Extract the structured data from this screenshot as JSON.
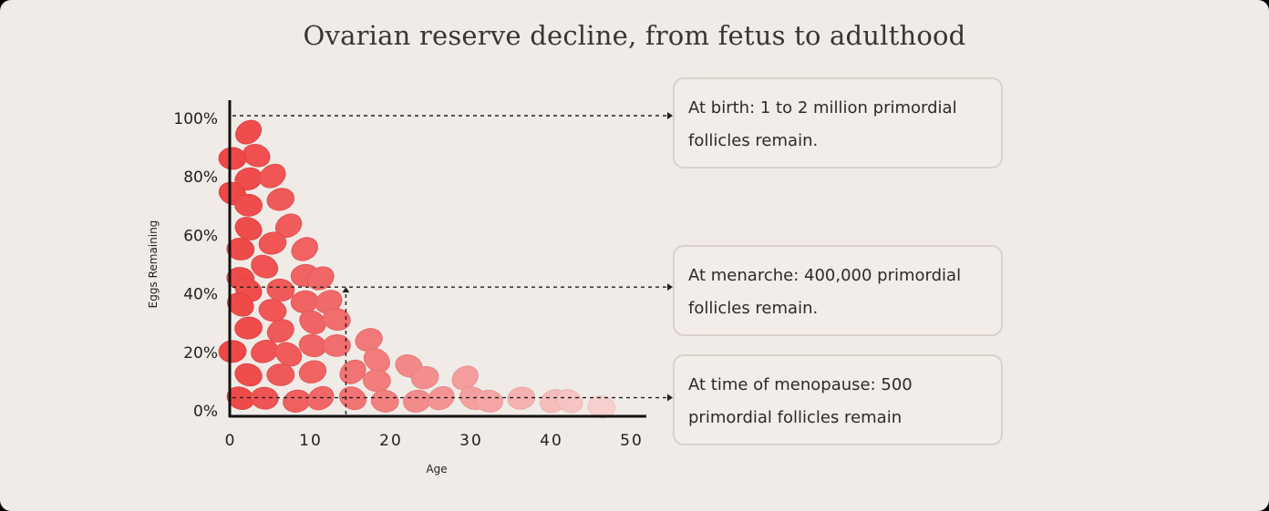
{
  "title": "Ovarian reserve decline, from fetus to adulthood",
  "colors": {
    "background": "#f0ebe7",
    "axis": "#111111",
    "egg_dark": "#ef4747",
    "egg_light": "#f9dcdc",
    "callout_border": "#d8d1cc"
  },
  "chart_data": {
    "type": "scatter",
    "title": "Ovarian reserve decline, from fetus to adulthood",
    "xlabel": "Age",
    "ylabel": "Eggs Remaining",
    "xlim": [
      0,
      50
    ],
    "ylim": [
      0,
      100
    ],
    "x_ticks": [
      "0",
      "10",
      "20",
      "30",
      "40",
      "50"
    ],
    "y_ticks": [
      "0%",
      "20%",
      "40%",
      "60%",
      "80%",
      "100%"
    ],
    "grid": false,
    "eggs": [
      {
        "x": 2,
        "y": 95
      },
      {
        "x": 3,
        "y": 87
      },
      {
        "x": 0,
        "y": 86
      },
      {
        "x": 2,
        "y": 79
      },
      {
        "x": 5,
        "y": 80
      },
      {
        "x": 0,
        "y": 74
      },
      {
        "x": 2,
        "y": 70
      },
      {
        "x": 6,
        "y": 72
      },
      {
        "x": 7,
        "y": 63
      },
      {
        "x": 2,
        "y": 62
      },
      {
        "x": 1,
        "y": 55
      },
      {
        "x": 5,
        "y": 57
      },
      {
        "x": 9,
        "y": 55
      },
      {
        "x": 4,
        "y": 49
      },
      {
        "x": 1,
        "y": 45
      },
      {
        "x": 9,
        "y": 46
      },
      {
        "x": 11,
        "y": 45
      },
      {
        "x": 2,
        "y": 41
      },
      {
        "x": 6,
        "y": 41
      },
      {
        "x": 9,
        "y": 37
      },
      {
        "x": 12,
        "y": 37
      },
      {
        "x": 1,
        "y": 36
      },
      {
        "x": 5,
        "y": 34
      },
      {
        "x": 2,
        "y": 28
      },
      {
        "x": 6,
        "y": 27
      },
      {
        "x": 10,
        "y": 30
      },
      {
        "x": 13,
        "y": 31
      },
      {
        "x": 0,
        "y": 20
      },
      {
        "x": 4,
        "y": 20
      },
      {
        "x": 7,
        "y": 19
      },
      {
        "x": 10,
        "y": 22
      },
      {
        "x": 13,
        "y": 22
      },
      {
        "x": 17,
        "y": 24
      },
      {
        "x": 18,
        "y": 17
      },
      {
        "x": 2,
        "y": 12
      },
      {
        "x": 6,
        "y": 12
      },
      {
        "x": 10,
        "y": 13
      },
      {
        "x": 15,
        "y": 13
      },
      {
        "x": 22,
        "y": 15
      },
      {
        "x": 18,
        "y": 10
      },
      {
        "x": 24,
        "y": 11
      },
      {
        "x": 29,
        "y": 11
      },
      {
        "x": 1,
        "y": 4
      },
      {
        "x": 4,
        "y": 4
      },
      {
        "x": 8,
        "y": 3
      },
      {
        "x": 11,
        "y": 4
      },
      {
        "x": 15,
        "y": 4
      },
      {
        "x": 19,
        "y": 3
      },
      {
        "x": 23,
        "y": 3
      },
      {
        "x": 26,
        "y": 4
      },
      {
        "x": 30,
        "y": 4
      },
      {
        "x": 32,
        "y": 3
      },
      {
        "x": 36,
        "y": 4
      },
      {
        "x": 40,
        "y": 3
      },
      {
        "x": 42,
        "y": 3
      },
      {
        "x": 46,
        "y": 1
      }
    ],
    "annotations": [
      {
        "y": 100,
        "text": "At birth: 1 to 2 million primordial follicles remain."
      },
      {
        "x": 13,
        "y": 42,
        "text": "At menarche: 400,000 primordial follicles remain."
      },
      {
        "y": 4.5,
        "text": "At time of menopause: 500 primordial follicles remain"
      }
    ]
  },
  "callouts": {
    "birth": "At birth: 1 to 2 million primordial follicles remain.",
    "menarche": "At menarche: 400,000 primordial follicles remain.",
    "menopause": "At time of menopause: 500 primordial follicles remain"
  }
}
